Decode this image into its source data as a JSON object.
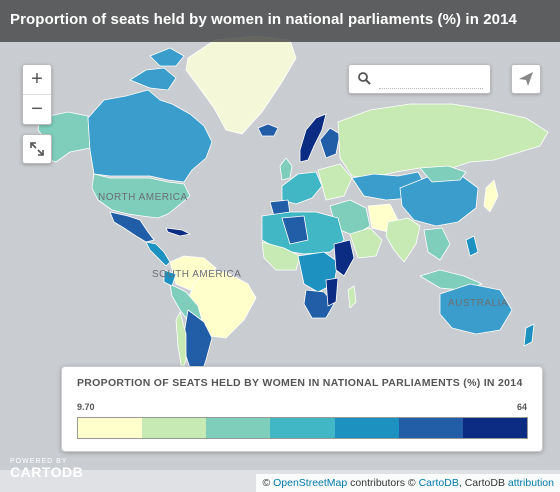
{
  "title": "Proportion of seats held by women in national parliaments (%) in 2014",
  "controls": {
    "zoom_in_label": "+",
    "zoom_out_label": "−",
    "search_placeholder": ""
  },
  "map_labels": {
    "north_america": "NORTH AMERICA",
    "south_america": "SOUTH AMERICA",
    "australia": "AUSTRALIA"
  },
  "legend": {
    "title": "PROPORTION OF SEATS HELD BY WOMEN IN NATIONAL PARLIAMENTS (%) IN 2014",
    "min": "9.70",
    "max": "64",
    "colors": [
      "#ffffcc",
      "#c7e9b4",
      "#7fcdbb",
      "#41b6c4",
      "#1d91c0",
      "#225ea8",
      "#0c2c84"
    ]
  },
  "branding": {
    "powered_by": "POWERED BY",
    "name": "CARTODB"
  },
  "attribution": {
    "copyright_1": "© ",
    "osm_link": "OpenStreetMap",
    "contributors": " contributors © ",
    "cartodb_link": "CartoDB",
    "sep": ", CartoDB ",
    "attribution_link": "attribution"
  }
}
